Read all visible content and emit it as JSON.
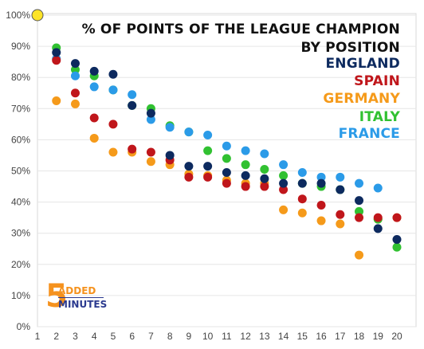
{
  "chart_data": {
    "type": "scatter",
    "title": "% OF POINTS OF THE LEAGUE CHAMPION",
    "subtitle": "BY POSITION",
    "x": [
      1,
      2,
      3,
      4,
      5,
      6,
      7,
      8,
      9,
      10,
      11,
      12,
      13,
      14,
      15,
      16,
      17,
      18,
      19,
      20
    ],
    "x_tick_labels": [
      "1",
      "2",
      "3",
      "4",
      "5",
      "6",
      "7",
      "8",
      "9",
      "10",
      "11",
      "12",
      "13",
      "14",
      "15",
      "16",
      "17",
      "18",
      "19",
      "20"
    ],
    "ylim": [
      0,
      100
    ],
    "y_ticks": [
      0,
      10,
      20,
      30,
      40,
      50,
      60,
      70,
      80,
      90,
      100
    ],
    "y_tick_labels": [
      "0%",
      "10%",
      "20%",
      "30%",
      "40%",
      "50%",
      "60%",
      "70%",
      "80%",
      "90%",
      "100%"
    ],
    "grid": "horizontal",
    "legend_position": "top-right",
    "champion_point": {
      "x": 1,
      "y": 100,
      "color": "#fde428"
    },
    "series": [
      {
        "name": "ENGLAND",
        "color": "#0d2a5f",
        "values": [
          100,
          88,
          84.5,
          82,
          81,
          71,
          68.5,
          55,
          51.5,
          51.5,
          49.5,
          48.5,
          47.5,
          46,
          46,
          46,
          44,
          40.5,
          31.5,
          28
        ]
      },
      {
        "name": "SPAIN",
        "color": "#c0161b",
        "values": [
          100,
          85.5,
          75,
          67,
          65,
          57,
          56,
          53.5,
          48,
          48,
          46,
          45,
          45,
          44,
          41,
          39,
          36,
          35,
          35,
          35
        ]
      },
      {
        "name": "GERMANY",
        "color": "#f59a1a",
        "values": [
          100,
          72.5,
          71.5,
          60.5,
          56,
          56,
          53,
          52,
          49,
          48.5,
          47,
          46,
          46,
          37.5,
          36.5,
          34,
          33,
          23,
          34.5,
          35
        ]
      },
      {
        "name": "ITALY",
        "color": "#31c131",
        "values": [
          100,
          89.5,
          82.5,
          80.5,
          76,
          71,
          70,
          64.5,
          62.5,
          56.5,
          54,
          52,
          50.5,
          48.5,
          46,
          45,
          44,
          37,
          34.5,
          25.5
        ]
      },
      {
        "name": "FRANCE",
        "color": "#2b9be8",
        "values": [
          100,
          86,
          80.5,
          77,
          76,
          74.5,
          66.5,
          64,
          62.5,
          61.5,
          58,
          56.5,
          55.5,
          52,
          49.5,
          48,
          48,
          46,
          44.5,
          null
        ]
      }
    ]
  },
  "logo": {
    "number": "5",
    "word1": "ADDED",
    "word2": "MINUTES"
  }
}
